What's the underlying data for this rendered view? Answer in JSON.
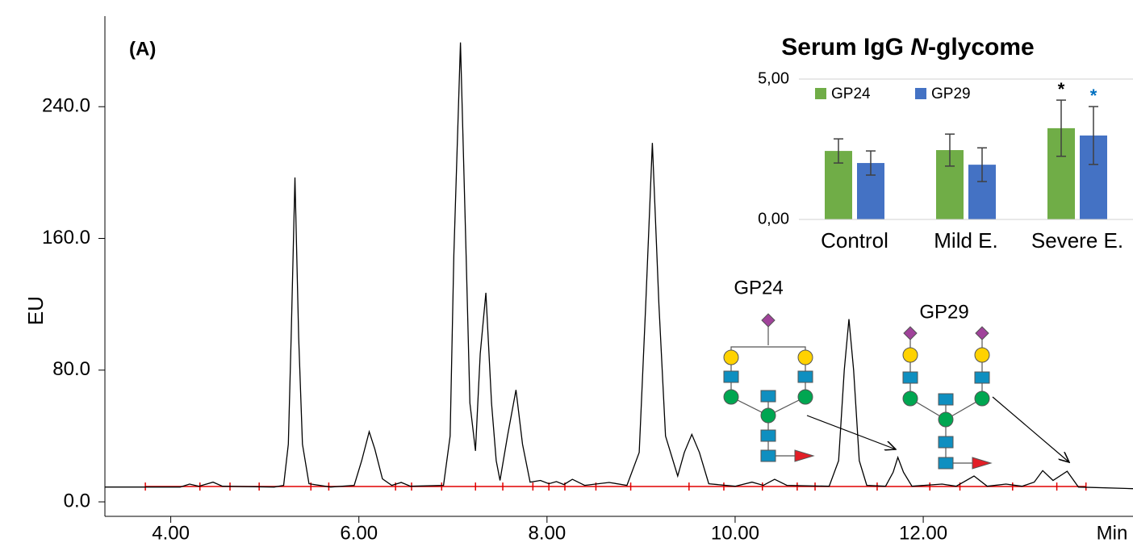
{
  "chart_data": [
    {
      "type": "line",
      "panel_label": "(A)",
      "ylabel": "EU",
      "xlabel": "Min",
      "color": "#000000",
      "x": [
        3.3,
        4.1,
        4.2,
        4.3,
        4.45,
        4.55,
        5.1,
        5.2,
        5.25,
        5.28,
        5.32,
        5.36,
        5.4,
        5.47,
        5.7,
        5.95,
        6.03,
        6.11,
        6.17,
        6.25,
        6.35,
        6.45,
        6.55,
        6.9,
        6.97,
        7.01,
        7.08,
        7.14,
        7.18,
        7.24,
        7.29,
        7.35,
        7.41,
        7.46,
        7.5,
        7.58,
        7.67,
        7.74,
        7.82,
        7.93,
        8.02,
        8.1,
        8.18,
        8.27,
        8.4,
        8.66,
        8.85,
        8.98,
        9.05,
        9.12,
        9.19,
        9.26,
        9.39,
        9.46,
        9.54,
        9.62,
        9.72,
        10.0,
        10.18,
        10.3,
        10.42,
        10.55,
        11.0,
        11.1,
        11.16,
        11.21,
        11.26,
        11.32,
        11.4,
        11.6,
        11.68,
        11.73,
        11.79,
        11.88,
        12.2,
        12.35,
        12.54,
        12.68,
        12.88,
        13.05,
        13.18,
        13.27,
        13.38,
        13.53,
        13.65,
        14.23
      ],
      "values": [
        9,
        9,
        10.8,
        9.5,
        12,
        9.5,
        9,
        10,
        35,
        100,
        197,
        100,
        35,
        11,
        9,
        10,
        25,
        42.6,
        32,
        14,
        10,
        11.8,
        9.5,
        10,
        40,
        150,
        279,
        150,
        60,
        31,
        90,
        127,
        60,
        25,
        13,
        40,
        68,
        35,
        12,
        13,
        11,
        12.3,
        10.5,
        13.7,
        10,
        11.8,
        10,
        30,
        120,
        218,
        120,
        40,
        15.7,
        30,
        41,
        30,
        11,
        9.5,
        12,
        10,
        13.7,
        10,
        9.5,
        25,
        80,
        111,
        80,
        25,
        10,
        9.5,
        18,
        27,
        18,
        9.5,
        10.8,
        9.5,
        15.7,
        9.5,
        10.8,
        9.5,
        12,
        19,
        13,
        18.6,
        9,
        8
      ],
      "integration": {
        "color": "#e00000",
        "level": 9.3,
        "x": [
          3.73,
          4.31,
          4.63,
          4.94,
          5.49,
          5.68,
          6.39,
          6.56,
          6.88,
          7.24,
          7.53,
          7.85,
          8.02,
          8.19,
          8.52,
          8.89,
          9.51,
          9.88,
          10.29,
          10.66,
          10.85,
          11.51,
          12.07,
          12.39,
          12.95,
          13.42,
          13.73
        ]
      },
      "xlim": [
        3.3,
        14.23
      ],
      "ylim": [
        -8.8,
        295
      ],
      "xticks": [
        {
          "value": 4,
          "label": "4.00"
        },
        {
          "value": 6,
          "label": "6.00"
        },
        {
          "value": 8,
          "label": "8.00"
        },
        {
          "value": 10,
          "label": "10.00"
        },
        {
          "value": 12,
          "label": "12.00"
        }
      ],
      "yticks": [
        {
          "value": 0,
          "label": "0.0"
        },
        {
          "value": 80,
          "label": "80.0"
        },
        {
          "value": 160,
          "label": "160.0"
        },
        {
          "value": 240,
          "label": "240.0"
        }
      ],
      "annotations": [
        "GP24",
        "GP29"
      ]
    },
    {
      "type": "bar",
      "title_parts": [
        "Serum IgG ",
        "N",
        "-glycome"
      ],
      "categories": [
        "Control",
        "Mild E.",
        "Severe E."
      ],
      "series": [
        {
          "name": "GP24",
          "color": "#70ad47",
          "values": [
            2.44,
            2.47,
            3.25
          ],
          "errors": [
            0.43,
            0.57,
            1.0
          ]
        },
        {
          "name": "GP29",
          "color": "#4472c4",
          "values": [
            2.01,
            1.95,
            2.99
          ],
          "errors": [
            0.43,
            0.6,
            1.03
          ]
        }
      ],
      "ylim": [
        0,
        5
      ],
      "yticks": [
        {
          "value": 0,
          "label": "0,00"
        },
        {
          "value": 5,
          "label": "5,00"
        }
      ],
      "annotations": [
        {
          "text": "*",
          "color": "#000000"
        },
        {
          "text": "*",
          "color": "#0070c0"
        }
      ]
    }
  ]
}
